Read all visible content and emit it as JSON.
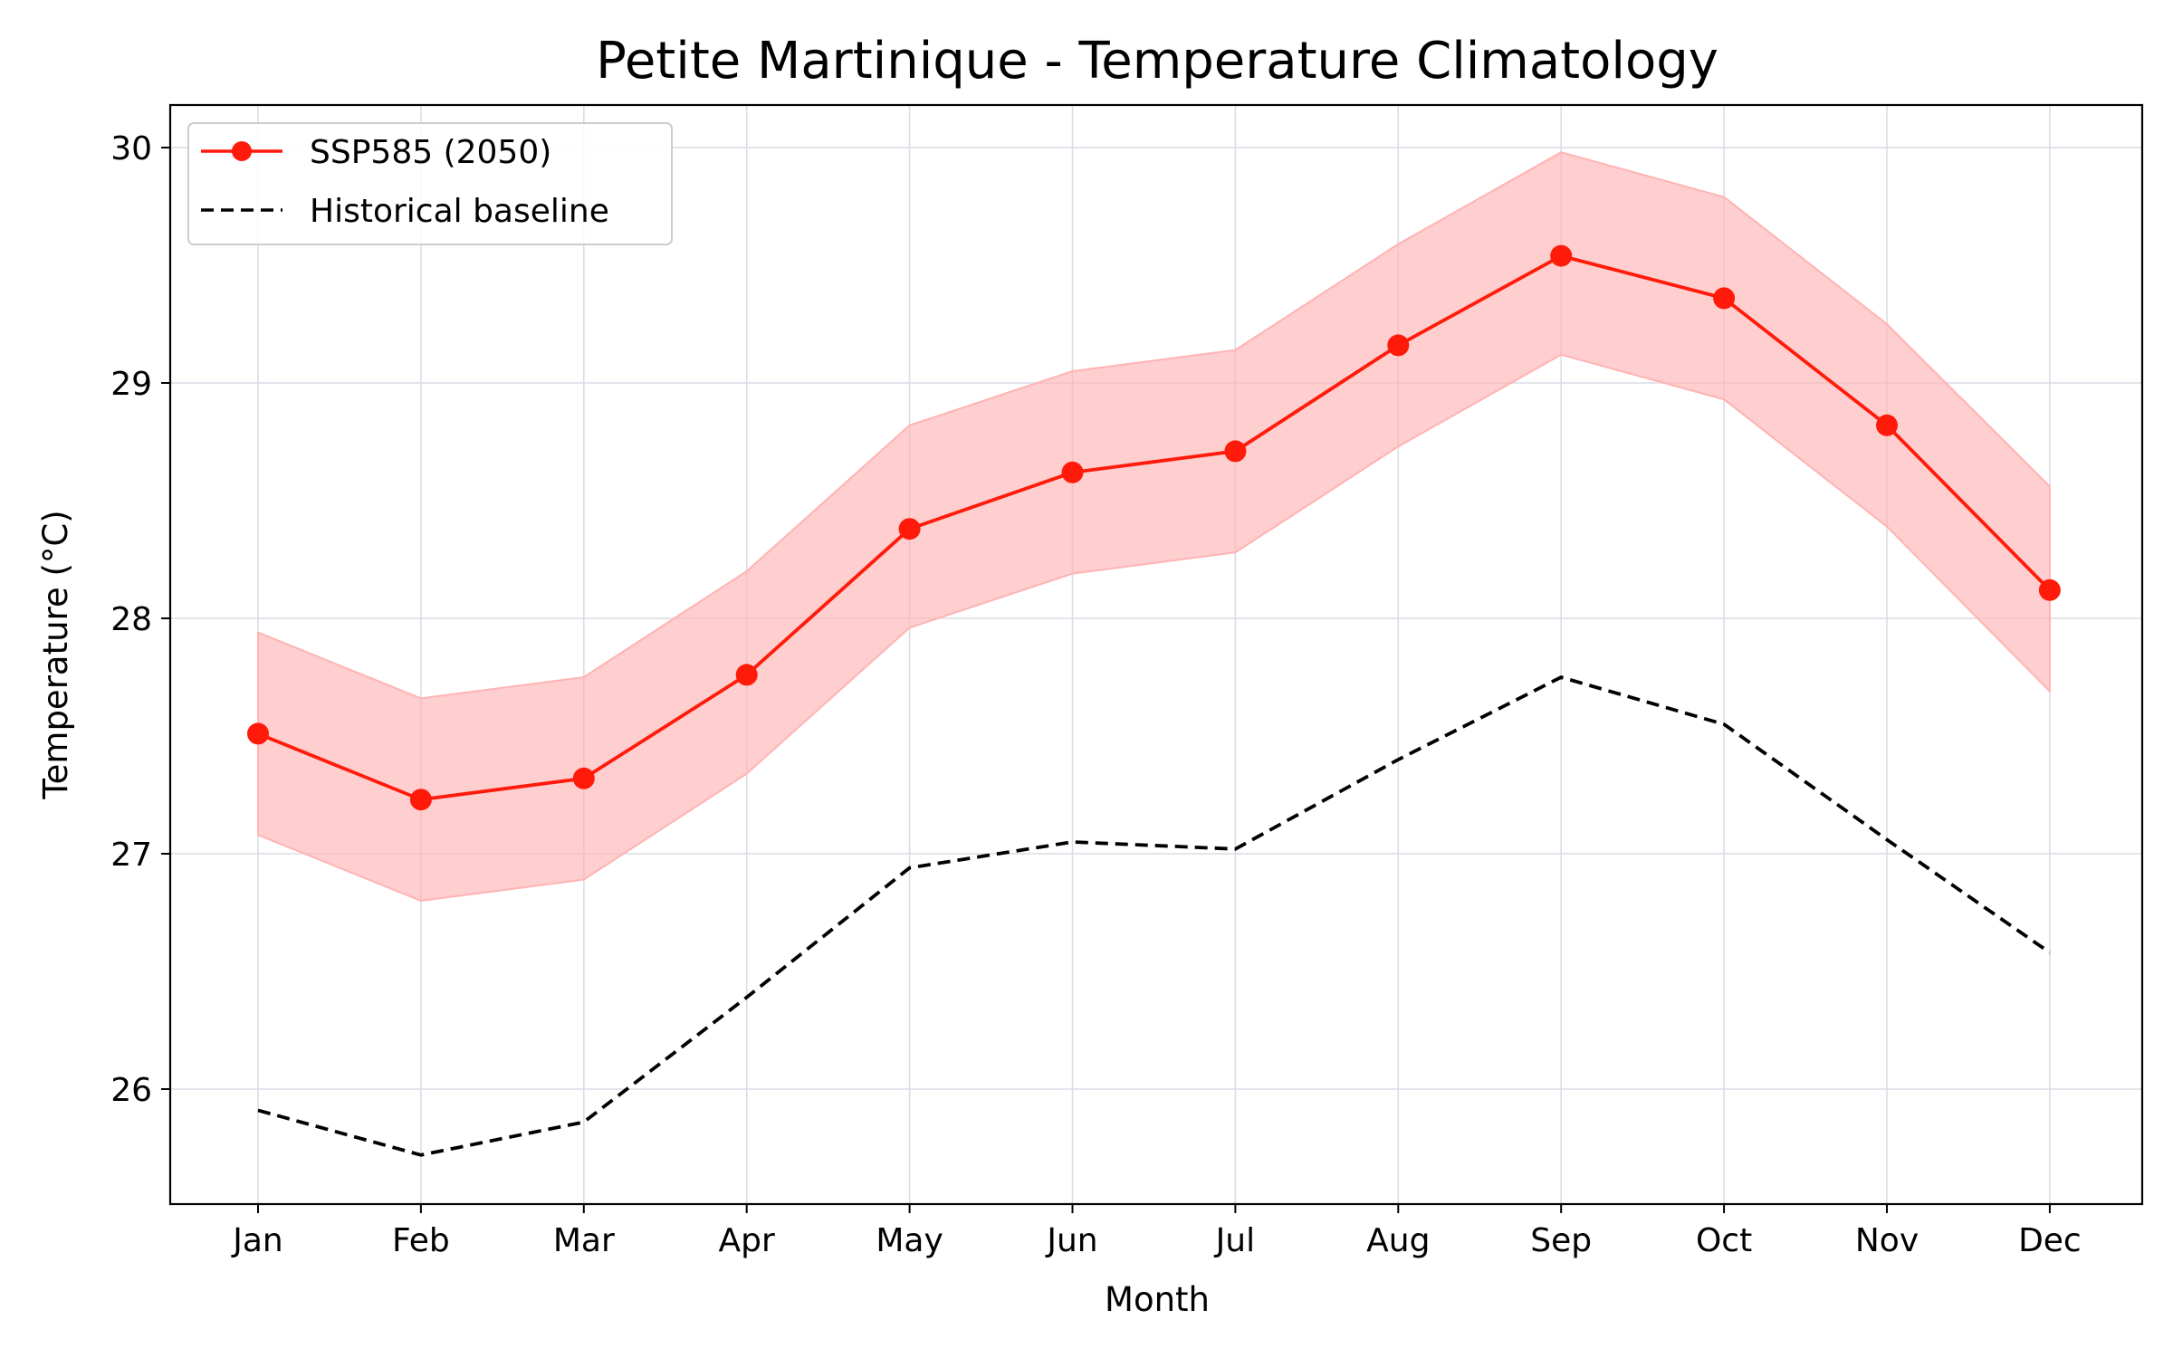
{
  "chart_data": {
    "type": "line",
    "title": "Petite Martinique - Temperature Climatology",
    "xlabel": "Month",
    "ylabel": "Temperature (°C)",
    "categories": [
      "Jan",
      "Feb",
      "Mar",
      "Apr",
      "May",
      "Jun",
      "Jul",
      "Aug",
      "Sep",
      "Oct",
      "Nov",
      "Dec"
    ],
    "ylim": [
      25.5,
      30.2
    ],
    "yticks": [
      26,
      27,
      28,
      29,
      30
    ],
    "grid": true,
    "legend_position": "top-left",
    "series": [
      {
        "name": "SSP585 (2050)",
        "color": "#ff1a0a",
        "style": "solid-with-circle-markers",
        "values": [
          27.51,
          27.23,
          27.32,
          27.76,
          28.38,
          28.62,
          28.71,
          29.16,
          29.54,
          29.36,
          28.82,
          28.12
        ],
        "band_lower": [
          27.08,
          26.8,
          26.89,
          27.34,
          27.96,
          28.19,
          28.28,
          28.73,
          29.12,
          28.93,
          28.39,
          27.69
        ],
        "band_upper": [
          27.94,
          27.66,
          27.75,
          28.2,
          28.82,
          29.05,
          29.14,
          29.59,
          29.98,
          29.79,
          29.25,
          28.56
        ],
        "band_color": "#ffb3b3"
      },
      {
        "name": "Historical baseline",
        "color": "#000000",
        "style": "dashed",
        "values": [
          25.91,
          25.72,
          25.86,
          26.39,
          26.94,
          27.05,
          27.02,
          27.4,
          27.75,
          27.55,
          27.06,
          26.58
        ]
      }
    ]
  }
}
